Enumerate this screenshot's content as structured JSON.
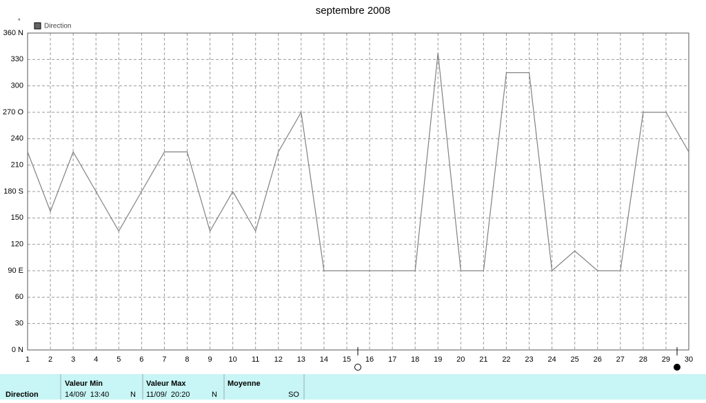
{
  "chart_data": {
    "type": "line",
    "title": "septembre 2008",
    "ylabel": "°",
    "x": [
      1,
      2,
      3,
      4,
      5,
      6,
      7,
      8,
      9,
      10,
      11,
      12,
      13,
      14,
      15,
      16,
      17,
      18,
      19,
      20,
      21,
      22,
      23,
      24,
      25,
      26,
      27,
      28,
      29,
      30
    ],
    "xlim": [
      1,
      30
    ],
    "xticks": [
      1,
      2,
      3,
      4,
      5,
      6,
      7,
      8,
      9,
      10,
      11,
      12,
      13,
      14,
      15,
      16,
      17,
      18,
      19,
      20,
      21,
      22,
      23,
      24,
      25,
      26,
      27,
      28,
      29,
      30
    ],
    "series": [
      {
        "name": "Direction",
        "color": "#808080",
        "values": [
          225,
          157.5,
          225,
          180,
          135,
          180,
          225,
          225,
          135,
          180,
          135,
          225,
          270,
          90,
          90,
          90,
          90,
          90,
          337.5,
          90,
          90,
          315,
          315,
          90,
          112.5,
          90,
          90,
          270,
          270,
          225
        ]
      }
    ],
    "ylim": [
      0,
      360
    ],
    "yticks": [
      {
        "value": 0,
        "label": "0 N"
      },
      30,
      60,
      {
        "value": 90,
        "label": "90 E"
      },
      120,
      150,
      {
        "value": 180,
        "label": "180 S"
      },
      210,
      240,
      {
        "value": 270,
        "label": "270 O"
      },
      300,
      330,
      {
        "value": 360,
        "label": "360 N"
      }
    ],
    "grid": true
  },
  "summary": {
    "label": "Direction",
    "min": {
      "title": "Valeur Min",
      "time": "14/09/  13:40",
      "dir": "N"
    },
    "max": {
      "title": "Valeur Max",
      "time": "11/09/  20:20",
      "dir": "N"
    },
    "mean": {
      "title": "Moyenne",
      "dir": "SO"
    }
  }
}
